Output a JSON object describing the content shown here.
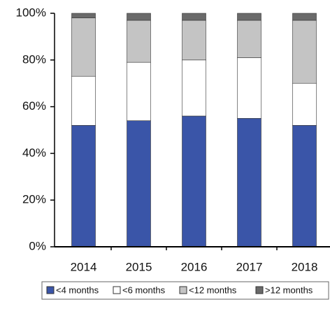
{
  "chart_data": {
    "type": "stacked_bar",
    "categories": [
      "2014",
      "2015",
      "2016",
      "2017",
      "2018"
    ],
    "series": [
      {
        "name": "<4 months",
        "color": "#3a55a8",
        "values": [
          52,
          54,
          56,
          55,
          52
        ]
      },
      {
        "name": "<6 months",
        "color": "#ffffff",
        "values": [
          21,
          25,
          24,
          26,
          18
        ]
      },
      {
        "name": "<12 months",
        "color": "#c4c4c4",
        "values": [
          25,
          18,
          17,
          16,
          27
        ]
      },
      {
        "name": ">12 months",
        "color": "#6a6a6a",
        "values": [
          2,
          3,
          3,
          3,
          3
        ]
      }
    ],
    "ylim": [
      0,
      100
    ],
    "yticks": [
      {
        "value": 0,
        "label": "0%"
      },
      {
        "value": 20,
        "label": "20%"
      },
      {
        "value": 40,
        "label": "40%"
      },
      {
        "value": 60,
        "label": "60%"
      },
      {
        "value": 80,
        "label": "80%"
      },
      {
        "value": 100,
        "label": "100%"
      }
    ],
    "legend": "bottom"
  }
}
